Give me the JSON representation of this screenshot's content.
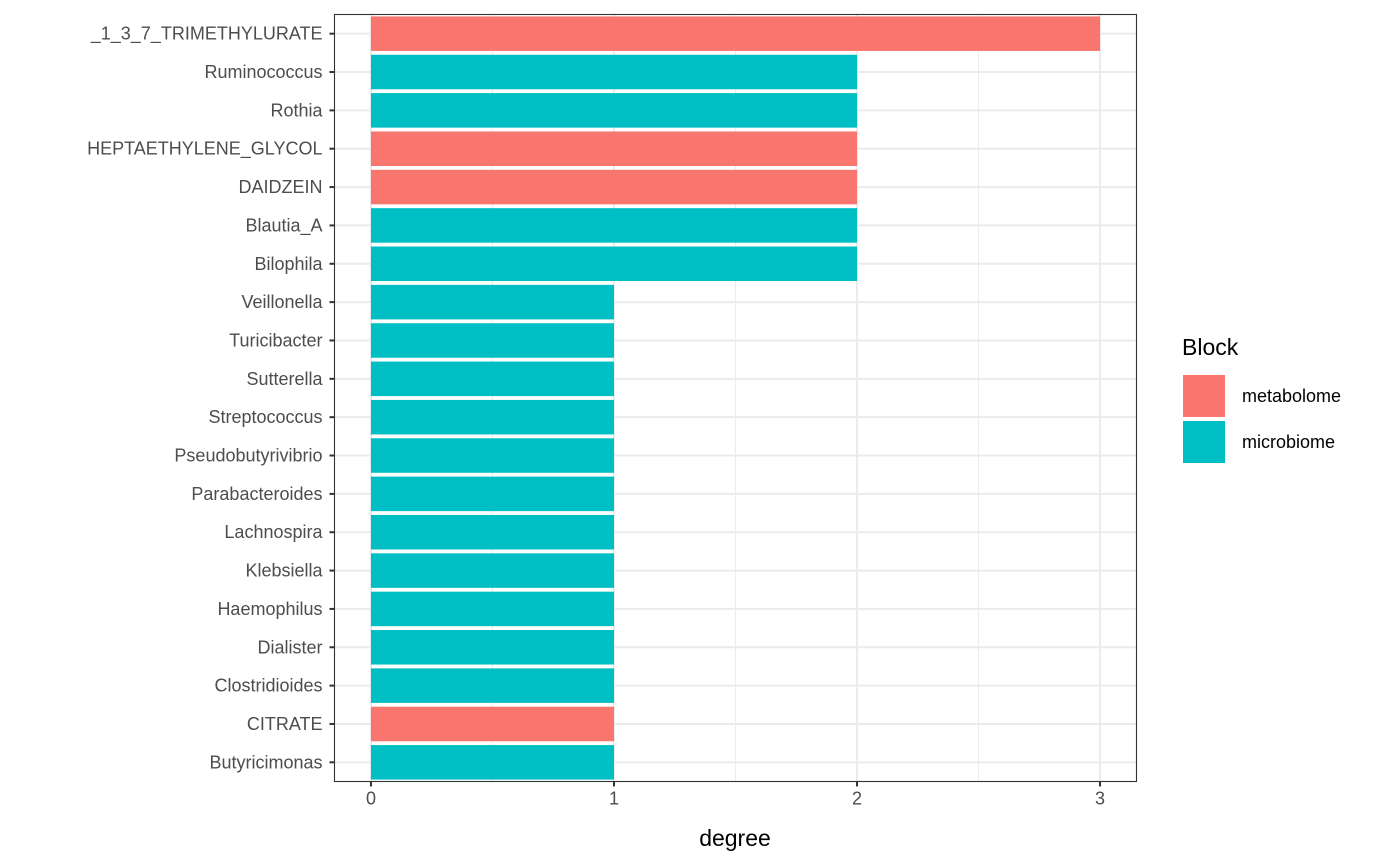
{
  "chart_data": {
    "type": "bar",
    "orientation": "horizontal",
    "xlabel": "degree",
    "ylabel": "",
    "xlim": [
      -0.15,
      3.15
    ],
    "xticks": [
      0,
      1,
      2,
      3
    ],
    "grid": true,
    "legend": {
      "title": "Block",
      "placement": "right",
      "entries": [
        {
          "label": "metabolome",
          "color": "#F8766D"
        },
        {
          "label": "microbiome",
          "color": "#00BFC4"
        }
      ]
    },
    "categories": [
      "_1_3_7_TRIMETHYLURATE",
      "Ruminococcus",
      "Rothia",
      "HEPTAETHYLENE_GLYCOL",
      "DAIDZEIN",
      "Blautia_A",
      "Bilophila",
      "Veillonella",
      "Turicibacter",
      "Sutterella",
      "Streptococcus",
      "Pseudobutyrivibrio",
      "Parabacteroides",
      "Lachnospira",
      "Klebsiella",
      "Haemophilus",
      "Dialister",
      "Clostridioides",
      "CITRATE",
      "Butyricimonas"
    ],
    "values": [
      3,
      2,
      2,
      2,
      2,
      2,
      2,
      1,
      1,
      1,
      1,
      1,
      1,
      1,
      1,
      1,
      1,
      1,
      1,
      1
    ],
    "block": [
      "metabolome",
      "microbiome",
      "microbiome",
      "metabolome",
      "metabolome",
      "microbiome",
      "microbiome",
      "microbiome",
      "microbiome",
      "microbiome",
      "microbiome",
      "microbiome",
      "microbiome",
      "microbiome",
      "microbiome",
      "microbiome",
      "microbiome",
      "microbiome",
      "metabolome",
      "microbiome"
    ]
  }
}
